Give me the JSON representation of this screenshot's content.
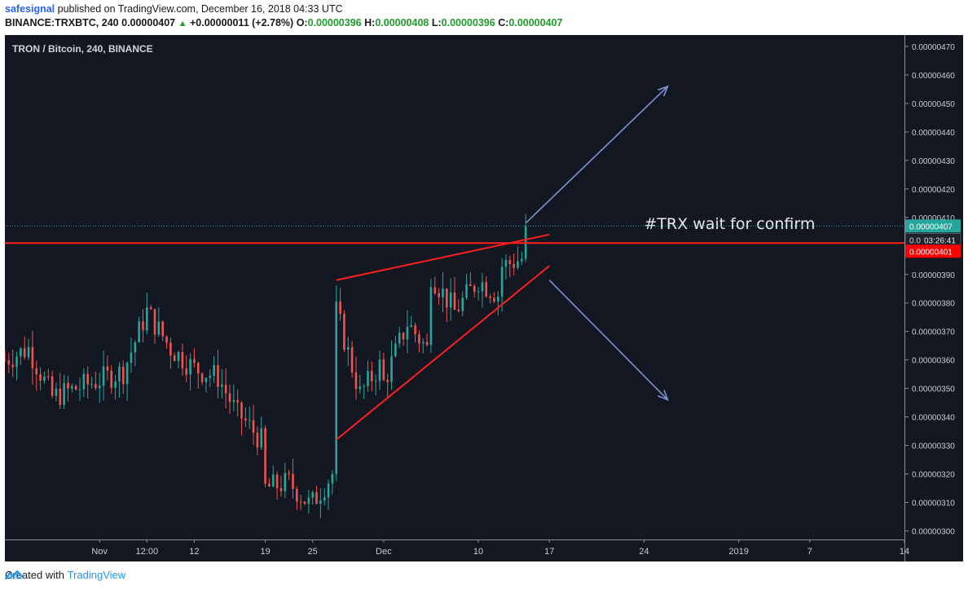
{
  "header": {
    "author": "safesignal",
    "published_text": "published on TradingView.com, December 16, 2018 04:33 UTC",
    "symbol": "BINANCE:TRXBTC, 240",
    "price": "0.00000407",
    "change": "+0.00000011 (+2.78%)",
    "o_label": "O:",
    "o_value": "0.00000396",
    "h_label": "H:",
    "h_value": "0.00000408",
    "l_label": "L:",
    "l_value": "0.00000396",
    "c_label": "C:",
    "c_value": "0.00000407"
  },
  "footer": {
    "created_with": "Created with",
    "brand": "TradingView"
  },
  "colors": {
    "background": "#131722",
    "up": "#26a69a",
    "down": "#ef5350",
    "trendline": "#ff1f1f",
    "arrow": "#7b93d6",
    "last_price": "#26a69a",
    "level_badge": "#ff0000"
  },
  "chart_data": {
    "type": "candlestick",
    "title": "TRON / Bitcoin, 240, BINANCE",
    "xlabel": "",
    "ylabel": "",
    "ylim": [
      2.97e-06,
      4.74e-06
    ],
    "y_ticks": [
      "0.00000470",
      "0.00000460",
      "0.00000450",
      "0.00000440",
      "0.00000430",
      "0.00000420",
      "0.00000410",
      "0.00000400",
      "0.00000390",
      "0.00000380",
      "0.00000370",
      "0.00000360",
      "0.00000350",
      "0.00000340",
      "0.00000330",
      "0.00000320",
      "0.00000310",
      "0.00000300"
    ],
    "x_ticks": [
      {
        "label": "Nov",
        "date": "2018-11-01"
      },
      {
        "label": "12:00",
        "date": "2018-11-03"
      },
      {
        "label": "12",
        "date": "2018-11-05"
      },
      {
        "label": "19",
        "date": "2018-11-08"
      },
      {
        "label": "25",
        "date": "2018-11-10"
      },
      {
        "label": "Dec",
        "date": "2018-11-13"
      },
      {
        "label": "10",
        "date": "2018-11-17"
      },
      {
        "label": "17",
        "date": "2018-11-20"
      },
      {
        "label": "24",
        "date": "2018-11-24"
      },
      {
        "label": "2019",
        "date": "2018-11-28"
      },
      {
        "label": "7",
        "date": "2018-12-01"
      },
      {
        "label": "14",
        "date": "2018-12-05"
      }
    ],
    "x_range": [
      "2018-10-28",
      "2018-12-05"
    ],
    "key_points": [
      {
        "t": "2018-10-28",
        "p": 3.6e-06
      },
      {
        "t": "2018-10-29",
        "p": 3.64e-06
      },
      {
        "t": "2018-10-30",
        "p": 3.47e-06
      },
      {
        "t": "2018-10-31",
        "p": 3.5e-06
      },
      {
        "t": "2018-11-02",
        "p": 3.56e-06
      },
      {
        "t": "2018-11-03",
        "p": 3.77e-06
      },
      {
        "t": "2018-11-04",
        "p": 3.64e-06
      },
      {
        "t": "2018-11-05",
        "p": 3.57e-06
      },
      {
        "t": "2018-11-06",
        "p": 3.54e-06
      },
      {
        "t": "2018-11-07",
        "p": 3.38e-06
      },
      {
        "t": "2018-11-07",
        "p": 3.4e-06
      },
      {
        "t": "2018-11-08",
        "p": 3.3e-06
      },
      {
        "t": "2018-11-08",
        "p": 3.15e-06
      },
      {
        "t": "2018-11-09",
        "p": 3.17e-06
      },
      {
        "t": "2018-11-10",
        "p": 3.08e-06
      },
      {
        "t": "2018-11-10",
        "p": 3.1e-06
      },
      {
        "t": "2018-11-11",
        "p": 3.22e-06
      },
      {
        "t": "2018-11-11",
        "p": 3.77e-06
      },
      {
        "t": "2018-11-12",
        "p": 3.48e-06
      },
      {
        "t": "2018-11-13",
        "p": 3.6e-06
      },
      {
        "t": "2018-11-13",
        "p": 3.52e-06
      },
      {
        "t": "2018-11-14",
        "p": 3.73e-06
      },
      {
        "t": "2018-11-15",
        "p": 3.62e-06
      },
      {
        "t": "2018-11-15",
        "p": 3.9e-06
      },
      {
        "t": "2018-11-16",
        "p": 3.77e-06
      },
      {
        "t": "2018-11-17",
        "p": 3.88e-06
      },
      {
        "t": "2018-11-18",
        "p": 3.82e-06
      },
      {
        "t": "2018-11-18",
        "p": 3.93e-06
      },
      {
        "t": "2018-11-19",
        "p": 3.96e-06
      },
      {
        "t": "2018-11-19",
        "p": 4.07e-06
      }
    ],
    "last_price_label": "0.00000407",
    "last_price": 4.07e-06,
    "countdown": "03:26:41",
    "level_label": "0.00000401",
    "level_price": 4.01e-06,
    "level_partial_label": "0.0",
    "annotations": [
      {
        "type": "text",
        "text": "#TRX wait for confirm"
      },
      {
        "type": "trendline",
        "from": {
          "t": "2018-11-11",
          "p": 3.88e-06
        },
        "to": {
          "t": "2018-11-20",
          "p": 4.04e-06
        }
      },
      {
        "type": "trendline",
        "from": {
          "t": "2018-11-11",
          "p": 3.32e-06
        },
        "to": {
          "t": "2018-11-20",
          "p": 3.93e-06
        }
      },
      {
        "type": "horizontal_line",
        "p": 4.01e-06
      },
      {
        "type": "arrow",
        "from": {
          "t": "2018-11-19",
          "p": 4.08e-06
        },
        "to": {
          "t": "2018-11-25",
          "p": 4.56e-06
        }
      },
      {
        "type": "arrow",
        "from": {
          "t": "2018-11-20",
          "p": 3.88e-06
        },
        "to": {
          "t": "2018-11-25",
          "p": 3.46e-06
        }
      }
    ]
  }
}
